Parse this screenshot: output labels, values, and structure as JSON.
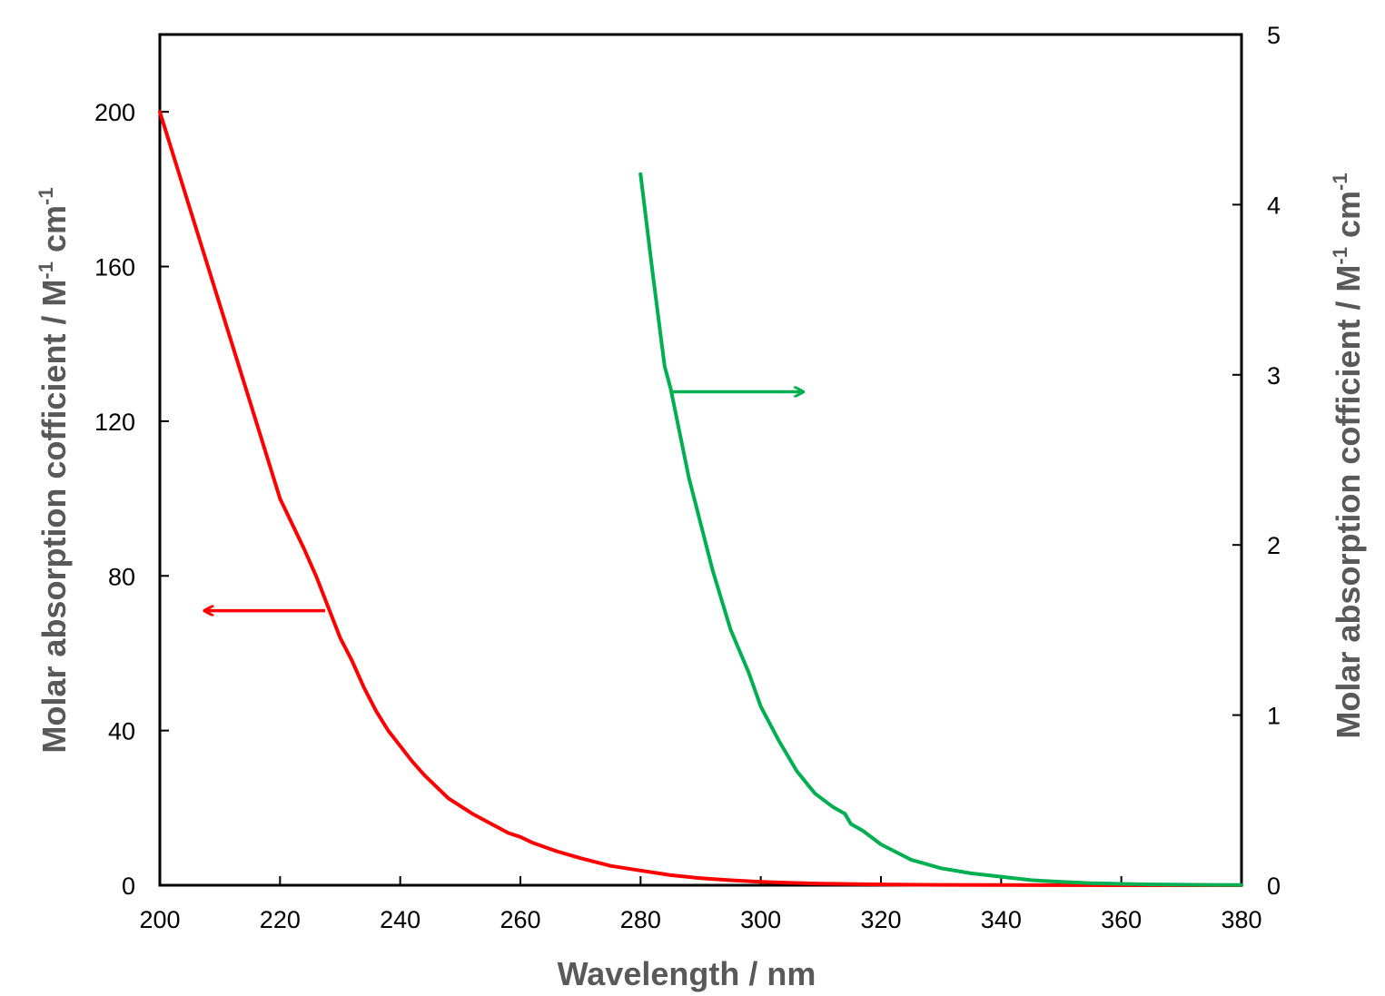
{
  "chart_data": {
    "type": "line",
    "title": "",
    "xlabel": "Wavelength  / nm",
    "ylabel": {
      "text": "Molar absorption cofficient / M",
      "sup1": "-1",
      "mid": " cm",
      "sup2": "-1"
    },
    "y2label": {
      "text": "Molar absorption cofficient / M",
      "sup1": "-1",
      "mid": " cm",
      "sup2": "-1"
    },
    "xlim": [
      200,
      380
    ],
    "ylim": [
      0,
      220
    ],
    "y2lim": [
      0,
      5
    ],
    "xticks": [
      200,
      220,
      240,
      260,
      280,
      300,
      320,
      340,
      360,
      380
    ],
    "yticks": [
      0,
      40,
      80,
      120,
      160,
      200
    ],
    "y2ticks": [
      0,
      1,
      2,
      3,
      4,
      5
    ],
    "grid": false,
    "series": [
      {
        "axis": "left",
        "color": "#ff0000",
        "x": [
          200,
          205,
          210,
          215,
          220,
          224,
          226,
          230,
          232,
          234,
          236,
          238,
          240,
          242,
          244,
          246,
          248,
          250,
          252,
          255,
          258,
          260,
          262,
          266,
          270,
          275,
          280,
          285,
          290,
          295,
          300,
          305,
          310,
          320,
          330,
          340,
          350,
          360,
          370,
          380
        ],
        "y": [
          200,
          175,
          150,
          125,
          100,
          87,
          80,
          64,
          58,
          51,
          45,
          40,
          36,
          32,
          28.5,
          25.5,
          22.5,
          20.5,
          18.5,
          16,
          13.5,
          12.5,
          11,
          8.8,
          7,
          5,
          3.8,
          2.6,
          1.8,
          1.3,
          0.9,
          0.6,
          0.4,
          0.2,
          0.1,
          0.06,
          0.03,
          0.01,
          0.005,
          0
        ]
      },
      {
        "axis": "right",
        "color": "#00b050",
        "x": [
          280,
          282,
          284,
          285,
          288,
          292,
          295,
          298,
          300,
          303,
          306,
          309,
          312,
          314,
          315,
          317,
          320,
          325,
          330,
          335,
          340,
          345,
          350,
          355,
          360,
          365,
          370,
          375,
          380
        ],
        "y": [
          4.18,
          3.6,
          3.05,
          2.92,
          2.4,
          1.85,
          1.5,
          1.25,
          1.05,
          0.85,
          0.67,
          0.54,
          0.46,
          0.42,
          0.36,
          0.32,
          0.24,
          0.15,
          0.1,
          0.07,
          0.05,
          0.03,
          0.02,
          0.012,
          0.008,
          0.005,
          0.003,
          0.002,
          0.001
        ]
      }
    ],
    "annotations": [
      {
        "type": "arrow",
        "color": "#ff0000",
        "axis": "left",
        "from": [
          227.5,
          71
        ],
        "to": [
          207.5,
          71
        ],
        "meaning": "points to left axis"
      },
      {
        "type": "arrow",
        "color": "#00b050",
        "axis": "right",
        "from": [
          285,
          2.9
        ],
        "to": [
          307,
          2.9
        ],
        "meaning": "points to right axis"
      }
    ]
  }
}
